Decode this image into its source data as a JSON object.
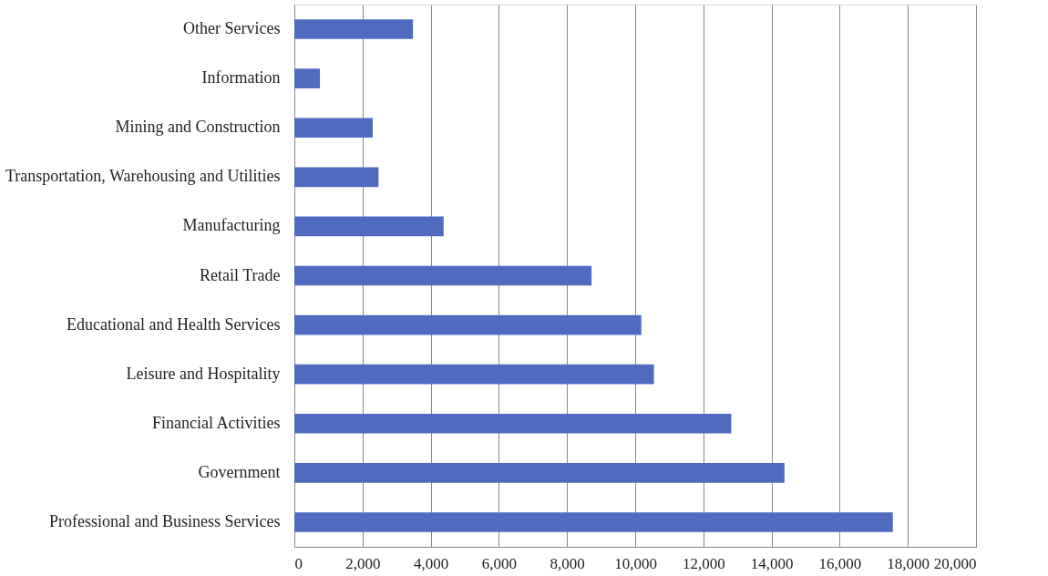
{
  "chart_data": {
    "type": "bar",
    "orientation": "horizontal",
    "categories": [
      "Other Services",
      "Information",
      "Mining and Construction",
      "Transportation, Warehousing and Utilities",
      "Manufacturing",
      "Retail Trade",
      "Educational and Health Services",
      "Leisure and Hospitality",
      "Financial Activities",
      "Government",
      "Professional and Business Services"
    ],
    "values": [
      3480,
      750,
      2300,
      2470,
      4380,
      8720,
      10180,
      10550,
      12820,
      14380,
      17560
    ],
    "color": "#4f6bbf",
    "xlim": [
      0,
      20000
    ],
    "xticks": [
      0,
      {
        "value": 2000,
        "label": "2,000"
      },
      {
        "value": 4000,
        "label": "4,000"
      },
      {
        "value": 6000,
        "label": "6,000"
      },
      {
        "value": 8000,
        "label": "8,000"
      },
      {
        "value": 10000,
        "label": "10,000"
      },
      {
        "value": 12000,
        "label": "12,000"
      },
      {
        "value": 14000,
        "label": "14,000"
      },
      {
        "value": 16000,
        "label": "16,000"
      },
      {
        "value": 18000,
        "label": "18,000"
      },
      {
        "value": 20000,
        "label": "20,000"
      }
    ],
    "grid": "x"
  }
}
